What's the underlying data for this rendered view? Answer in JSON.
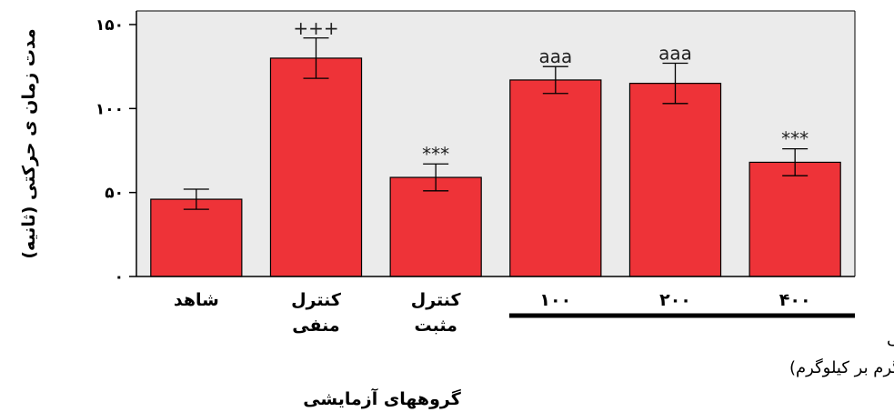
{
  "chart_data": {
    "type": "bar",
    "ylabel": "مدت زمان ی حرکتی (ثانیه)",
    "xlabel": "گروههای آزمایشی",
    "ylim": [
      0,
      150
    ],
    "yticks": [
      0,
      50,
      100,
      150
    ],
    "ytick_labels": [
      "۰",
      "۵۰",
      "۱۰۰",
      "۱۵۰"
    ],
    "grid": false,
    "bar_color": "#ee3338",
    "plot_background": "#ebebeb",
    "categories": [
      [
        "شاهد"
      ],
      [
        "کنترل",
        "منفی"
      ],
      [
        "کنترل",
        "مثبت"
      ],
      [
        "۱۰۰"
      ],
      [
        "۲۰۰"
      ],
      [
        "۴۰۰"
      ]
    ],
    "values": [
      46,
      130,
      59,
      117,
      115,
      68
    ],
    "errors": [
      6,
      12,
      8,
      8,
      12,
      8
    ],
    "significance": [
      "",
      "+++",
      "***",
      "aaa",
      "aaa",
      "***"
    ],
    "group_note": {
      "line1": "عصاره آبی‌الکلی میوه نسترن کوهی",
      "line2": "(میلی‌گرم بر کیلوگرم)"
    }
  }
}
